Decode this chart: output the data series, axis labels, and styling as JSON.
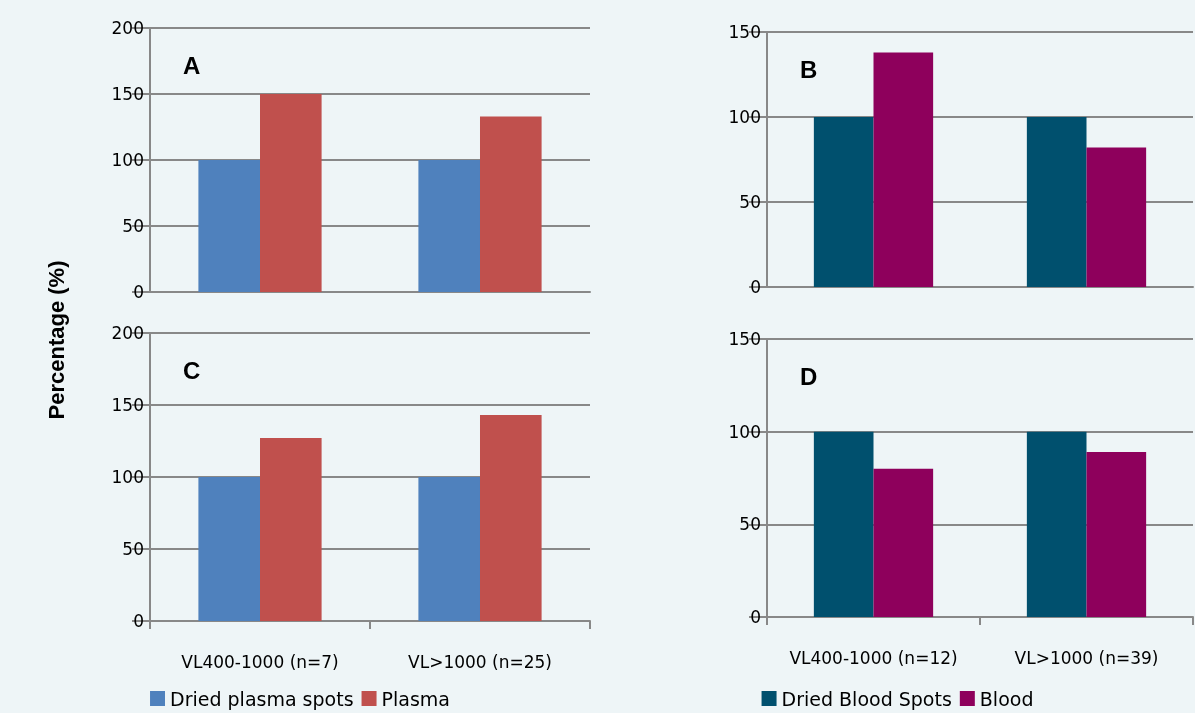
{
  "chart_data": [
    {
      "type": "bar",
      "title": "A",
      "ylabel": "Percentage (%)",
      "categories": [
        null,
        null
      ],
      "tick_labels": "y",
      "ylim": [
        0,
        200
      ],
      "yticks": [
        0,
        50,
        100,
        150,
        200
      ],
      "grid": "y",
      "legend": false,
      "series": [
        {
          "color": "#4f81bd",
          "values": [
            100,
            100
          ]
        },
        {
          "color": "#c0504d",
          "values": [
            150,
            133
          ]
        }
      ]
    },
    {
      "type": "bar",
      "title": "B",
      "categories": [
        null,
        null
      ],
      "tick_labels": "y",
      "ylim": [
        0,
        150
      ],
      "yticks": [
        0,
        50,
        100,
        150
      ],
      "grid": "y",
      "legend": false,
      "series": [
        {
          "color": "#00506e",
          "values": [
            100,
            100
          ]
        },
        {
          "color": "#8e005c",
          "values": [
            138,
            82
          ]
        }
      ]
    },
    {
      "type": "bar",
      "title": "C",
      "categories": [
        "VL400-1000 (n=7)",
        "VL>1000 (n=25)"
      ],
      "ylim": [
        0,
        200
      ],
      "yticks": [
        0,
        50,
        100,
        150,
        200
      ],
      "grid": "y",
      "legend": "bottom",
      "series": [
        {
          "name": "Dried plasma spots",
          "color": "#4f81bd",
          "values": [
            100,
            100
          ]
        },
        {
          "name": "Plasma",
          "color": "#c0504d",
          "values": [
            127,
            143
          ]
        }
      ]
    },
    {
      "type": "bar",
      "title": "D",
      "categories": [
        "VL400-1000 (n=12)",
        "VL>1000 (n=39)"
      ],
      "ylim": [
        0,
        150
      ],
      "yticks": [
        0,
        50,
        100,
        150
      ],
      "grid": "y",
      "legend": "bottom",
      "series": [
        {
          "name": "Dried Blood Spots",
          "color": "#00506e",
          "values": [
            100,
            100
          ]
        },
        {
          "name": "Blood",
          "color": "#8e005c",
          "values": [
            80,
            89
          ]
        }
      ]
    }
  ]
}
